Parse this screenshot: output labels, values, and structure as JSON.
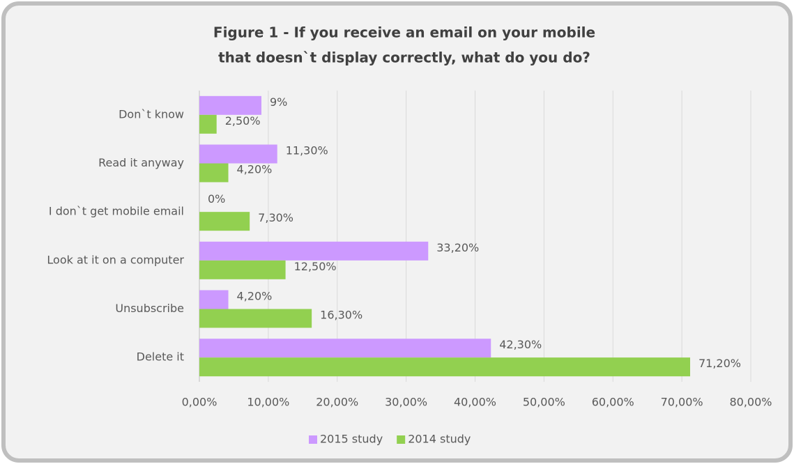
{
  "chart_data": {
    "type": "hbar",
    "title": [
      "Figure 1 - If you receive an email on your mobile",
      "that doesn`t display correctly, what do you do?"
    ],
    "categories": [
      "Don`t know",
      "Read it anyway",
      "I don`t get mobile email",
      "Look at it on a computer",
      "Unsubscribe",
      "Delete it"
    ],
    "series": [
      {
        "name": "2015 study",
        "color": "#cc99ff",
        "values": [
          9,
          11.3,
          0,
          33.2,
          4.2,
          42.3
        ],
        "value_labels": [
          "9%",
          "11,30%",
          "0%",
          "33,20%",
          "4,20%",
          "42,30%"
        ]
      },
      {
        "name": "2014 study",
        "color": "#92d050",
        "values": [
          2.5,
          4.2,
          7.3,
          12.5,
          16.3,
          71.2
        ],
        "value_labels": [
          "2,50%",
          "4,20%",
          "7,30%",
          "12,50%",
          "16,30%",
          "71,20%"
        ]
      }
    ],
    "xlim": [
      0,
      80
    ],
    "xticks": [
      {
        "value": 0,
        "label": "0,00%"
      },
      {
        "value": 10,
        "label": "10,00%"
      },
      {
        "value": 20,
        "label": "20,00%"
      },
      {
        "value": 30,
        "label": "30,00%"
      },
      {
        "value": 40,
        "label": "40,00%"
      },
      {
        "value": 50,
        "label": "50,00%"
      },
      {
        "value": 60,
        "label": "60,00%"
      },
      {
        "value": 70,
        "label": "70,00%"
      },
      {
        "value": 80,
        "label": "80,00%"
      }
    ],
    "grid": true,
    "legend": "bottom"
  }
}
